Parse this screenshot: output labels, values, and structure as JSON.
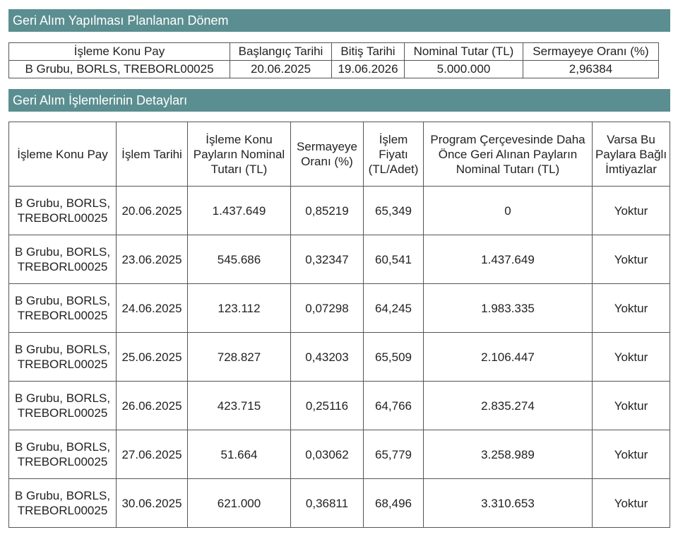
{
  "sections": {
    "period_title": "Geri Alım Yapılması Planlanan Dönem",
    "details_title": "Geri Alım İşlemlerinin Detayları"
  },
  "period": {
    "headers": [
      "İşleme Konu Pay",
      "Başlangıç Tarihi",
      "Bitiş Tarihi",
      "Nominal Tutar (TL)",
      "Sermayeye Oranı (%)"
    ],
    "row": [
      "B Grubu, BORLS, TREBORL00025",
      "20.06.2025",
      "19.06.2026",
      "5.000.000",
      "2,96384"
    ]
  },
  "details": {
    "headers": [
      "İşleme Konu Pay",
      "İşlem Tarihi",
      "İşleme Konu Payların Nominal Tutarı (TL)",
      "Sermayeye Oranı (%)",
      "İşlem Fiyatı (TL/Adet)",
      "Program Çerçevesinde Daha Önce Geri Alınan Payların Nominal Tutarı (TL)",
      "Varsa Bu Paylara Bağlı İmtiyazlar"
    ],
    "rows": [
      [
        "B Grubu, BORLS, TREBORL00025",
        "20.06.2025",
        "1.437.649",
        "0,85219",
        "65,349",
        "0",
        "Yoktur"
      ],
      [
        "B Grubu, BORLS, TREBORL00025",
        "23.06.2025",
        "545.686",
        "0,32347",
        "60,541",
        "1.437.649",
        "Yoktur"
      ],
      [
        "B Grubu, BORLS, TREBORL00025",
        "24.06.2025",
        "123.112",
        "0,07298",
        "64,245",
        "1.983.335",
        "Yoktur"
      ],
      [
        "B Grubu, BORLS, TREBORL00025",
        "25.06.2025",
        "728.827",
        "0,43203",
        "65,509",
        "2.106.447",
        "Yoktur"
      ],
      [
        "B Grubu, BORLS, TREBORL00025",
        "26.06.2025",
        "423.715",
        "0,25116",
        "64,766",
        "2.835.274",
        "Yoktur"
      ],
      [
        "B Grubu, BORLS, TREBORL00025",
        "27.06.2025",
        "51.664",
        "0,03062",
        "65,779",
        "3.258.989",
        "Yoktur"
      ],
      [
        "B Grubu, BORLS, TREBORL00025",
        "30.06.2025",
        "621.000",
        "0,36811",
        "68,496",
        "3.310.653",
        "Yoktur"
      ]
    ]
  },
  "colors": {
    "header_bg": "#5b8e90",
    "header_text": "#ffffff",
    "border": "#555555"
  }
}
